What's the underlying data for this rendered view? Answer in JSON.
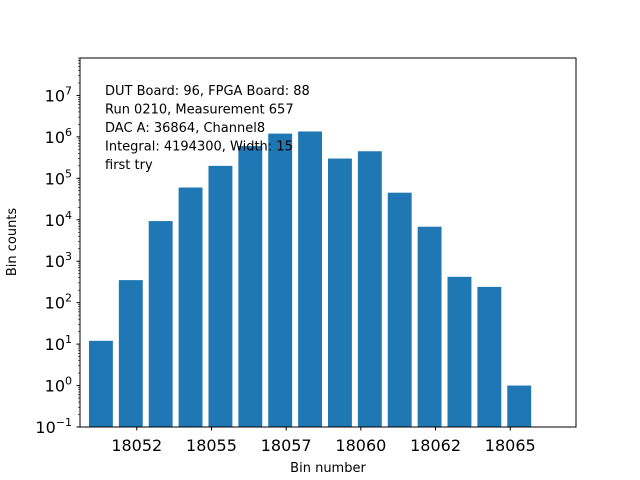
{
  "chart_data": {
    "type": "bar",
    "title": "",
    "xlabel": "Bin number",
    "ylabel": "Bin counts",
    "yscale": "log",
    "ylim": [
      0.1,
      80000000
    ],
    "xlim": [
      18050.3,
      18066.9
    ],
    "grid": false,
    "x": [
      18051,
      18052,
      18053,
      18054,
      18055,
      18056,
      18057,
      18058,
      18059,
      18060,
      18061,
      18062,
      18063,
      18064,
      18065,
      18066
    ],
    "values": [
      12,
      350,
      9300,
      60000,
      200000,
      600000,
      1200000,
      1350000,
      300000,
      450000,
      45000,
      6800,
      420,
      240,
      1,
      0
    ],
    "bar_color": "#1f77b4",
    "x_ticks": [
      {
        "value": 18052.2,
        "label": "18052"
      },
      {
        "value": 18054.7,
        "label": "18055"
      },
      {
        "value": 18057.2,
        "label": "18057"
      },
      {
        "value": 18059.7,
        "label": "18060"
      },
      {
        "value": 18062.2,
        "label": "18062"
      },
      {
        "value": 18064.7,
        "label": "18065"
      }
    ],
    "y_ticks": [
      {
        "exp": -1,
        "base": "10",
        "sup": "−1"
      },
      {
        "exp": 0,
        "base": "10",
        "sup": "0"
      },
      {
        "exp": 1,
        "base": "10",
        "sup": "1"
      },
      {
        "exp": 2,
        "base": "10",
        "sup": "2"
      },
      {
        "exp": 3,
        "base": "10",
        "sup": "3"
      },
      {
        "exp": 4,
        "base": "10",
        "sup": "4"
      },
      {
        "exp": 5,
        "base": "10",
        "sup": "5"
      },
      {
        "exp": 6,
        "base": "10",
        "sup": "6"
      },
      {
        "exp": 7,
        "base": "10",
        "sup": "7"
      }
    ],
    "annotation": [
      "DUT Board: 96, FPGA Board: 88",
      "Run 0210, Measurement 657",
      "DAC A: 36864, Channel8",
      "Integral: 4194300, Width: 15",
      "first try"
    ]
  }
}
